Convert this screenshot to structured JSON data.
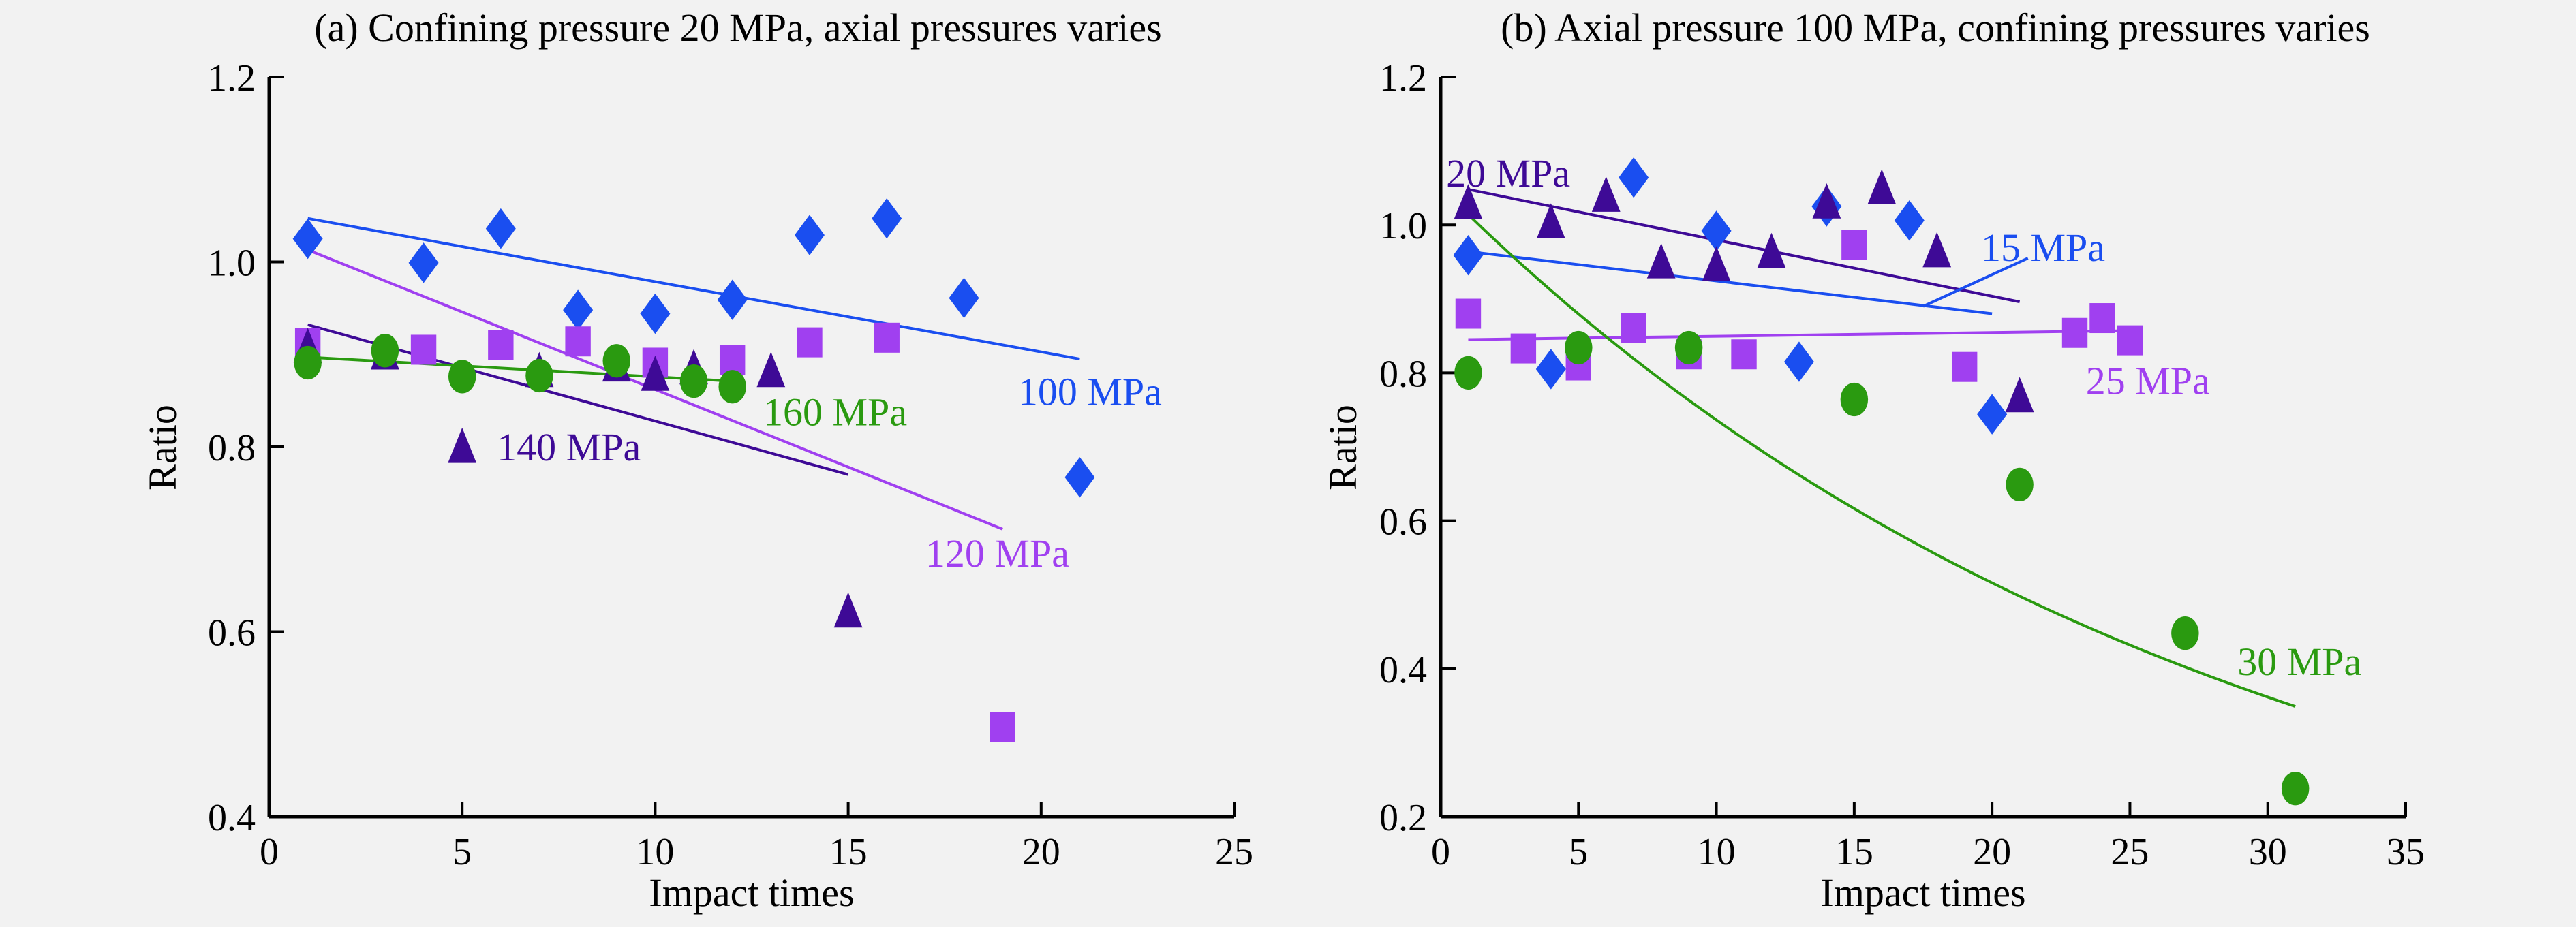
{
  "chart_data": [
    {
      "id": "a",
      "type": "scatter",
      "title": "(a) Confining pressure 20 MPa, axial pressures varies",
      "xlabel": "Impact times",
      "ylabel": "Ratio",
      "xlim": [
        0,
        25
      ],
      "ylim": [
        0.4,
        1.2
      ],
      "xticks": [
        0,
        5,
        10,
        15,
        20,
        25
      ],
      "yticks": [
        0.4,
        0.6,
        0.8,
        1.0,
        1.2
      ],
      "ytick_labels": [
        "0.4",
        "0.6",
        "0.8",
        "1.0",
        "1.2"
      ],
      "grid": false,
      "legend": "inline labels next to fit lines",
      "series": [
        {
          "name": "100 MPa",
          "marker": "diamond",
          "color": "#1a4ef0",
          "x": [
            1,
            4,
            6,
            8,
            10,
            12,
            14,
            16,
            18,
            21
          ],
          "y": [
            1.025,
            0.999,
            1.036,
            0.948,
            0.944,
            0.959,
            1.029,
            1.047,
            0.961,
            0.767
          ],
          "fit": {
            "type": "linear",
            "x": [
              1,
              21
            ],
            "y": [
              1.047,
              0.895
            ]
          }
        },
        {
          "name": "120 MPa",
          "marker": "square",
          "color": "#a040f0",
          "x": [
            1,
            4,
            6,
            8,
            10,
            12,
            14,
            16,
            19
          ],
          "y": [
            0.912,
            0.905,
            0.91,
            0.914,
            0.891,
            0.894,
            0.913,
            0.918,
            0.497
          ],
          "fit": {
            "type": "linear",
            "x": [
              1,
              19
            ],
            "y": [
              1.013,
              0.711
            ]
          }
        },
        {
          "name": "140 MPa",
          "marker": "triangle",
          "color": "#3e0a96",
          "x": [
            1,
            3,
            7,
            9,
            10,
            11,
            13,
            15
          ],
          "y": [
            0.906,
            0.899,
            0.88,
            0.886,
            0.876,
            0.883,
            0.88,
            0.62
          ],
          "fit": {
            "type": "linear",
            "x": [
              1,
              15
            ],
            "y": [
              0.932,
              0.77
            ]
          }
        },
        {
          "name": "160 MPa",
          "marker": "circle",
          "color": "#2a9a10",
          "x": [
            1,
            3,
            5,
            7,
            9,
            11,
            12
          ],
          "y": [
            0.891,
            0.904,
            0.876,
            0.877,
            0.893,
            0.871,
            0.865
          ],
          "fit": {
            "type": "linear",
            "x": [
              1,
              12
            ],
            "y": [
              0.897,
              0.871
            ]
          }
        }
      ],
      "annotations": [
        {
          "text": "100 MPa",
          "series": 0,
          "x": 19.4,
          "y": 0.86
        },
        {
          "text": "160 MPa",
          "series": 3,
          "x": 12.8,
          "y": 0.838
        },
        {
          "text": "140 MPa",
          "series": 2,
          "x": 5.9,
          "y": 0.8,
          "marker": "triangle",
          "marker_x": 5,
          "marker_y": 0.798
        },
        {
          "text": "120 MPa",
          "series": 1,
          "x": 17.0,
          "y": 0.685
        }
      ]
    },
    {
      "id": "b",
      "type": "scatter",
      "title": "(b) Axial pressure 100 MPa, confining pressures varies",
      "xlabel": "Impact times",
      "ylabel": "Ratio",
      "xlim": [
        0,
        35
      ],
      "ylim": [
        0.2,
        1.2
      ],
      "xticks": [
        0,
        5,
        10,
        15,
        20,
        25,
        30,
        35
      ],
      "yticks": [
        0.2,
        0.4,
        0.6,
        0.8,
        1.0,
        1.2
      ],
      "ytick_labels": [
        "0.2",
        "0.4",
        "0.6",
        "0.8",
        "1.0",
        "1.2"
      ],
      "grid": false,
      "legend": "inline labels next to fit lines",
      "series": [
        {
          "name": "15 MPa",
          "marker": "diamond",
          "color": "#1a4ef0",
          "x": [
            1,
            4,
            7,
            10,
            13,
            14,
            17,
            20
          ],
          "y": [
            0.959,
            0.805,
            1.064,
            0.992,
            0.815,
            1.025,
            1.006,
            0.744
          ],
          "fit": {
            "type": "linear",
            "x": [
              1,
              20
            ],
            "y": [
              0.964,
              0.88
            ]
          }
        },
        {
          "name": "20 MPa",
          "marker": "triangle",
          "color": "#3e0a96",
          "x": [
            1,
            4,
            6,
            8,
            10,
            12,
            14,
            16,
            18,
            21
          ],
          "y": [
            1.027,
            1.001,
            1.037,
            0.947,
            0.943,
            0.961,
            1.028,
            1.047,
            0.962,
            0.766
          ],
          "fit": {
            "type": "linear",
            "x": [
              1,
              21
            ],
            "y": [
              1.048,
              0.896
            ]
          }
        },
        {
          "name": "25 MPa",
          "marker": "square",
          "color": "#a040f0",
          "x": [
            1,
            3,
            5,
            7,
            9,
            11,
            15,
            19,
            23,
            24,
            25
          ],
          "y": [
            0.88,
            0.833,
            0.81,
            0.861,
            0.825,
            0.825,
            0.973,
            0.808,
            0.854,
            0.874,
            0.844
          ],
          "fit": {
            "type": "linear",
            "x": [
              1,
              25
            ],
            "y": [
              0.845,
              0.857
            ]
          }
        },
        {
          "name": "30 MPa",
          "marker": "circle",
          "color": "#2a9a10",
          "x": [
            1,
            5,
            9,
            15,
            21,
            27,
            31
          ],
          "y": [
            0.8,
            0.834,
            0.834,
            0.764,
            0.649,
            0.448,
            0.238
          ],
          "fit": {
            "type": "exponential",
            "a": 1.0507,
            "b": -0.03555,
            "x": [
              1,
              31
            ]
          }
        }
      ],
      "annotations": [
        {
          "text": "20 MPa",
          "series": 1,
          "x": 0.2,
          "y": 1.07
        },
        {
          "text": "15 MPa",
          "series": 0,
          "x": 19.6,
          "y": 0.97,
          "leader": {
            "x": [
              17.5,
              21.3
            ],
            "y": [
              0.89,
              0.955
            ]
          }
        },
        {
          "text": "25 MPa",
          "series": 2,
          "x": 23.4,
          "y": 0.79
        },
        {
          "text": "30 MPa",
          "series": 3,
          "x": 28.9,
          "y": 0.41
        }
      ]
    }
  ]
}
